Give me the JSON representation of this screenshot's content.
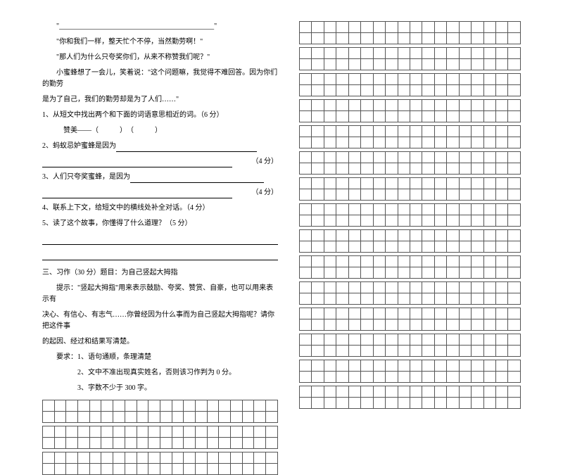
{
  "left": {
    "dialog1": "\"____________________________________________\"",
    "dialog2": "\"你和我们一样，整天忙个不停，当然勤劳啊！\"",
    "dialog3": "\"那人们为什么只夸奖你们，从来不称赞我们呢？\"",
    "dialog4_pre": "小蜜蜂想了一会儿，笑着说：\"这个问题嘛，我觉得不难回答。因为你们的勤劳",
    "dialog4_post": "是为了自己，我们的勤劳却是为了人们……\"",
    "q1": "1、从短文中找出两个和下面的词语意思相近的词。（6 分）",
    "q1_blank": "赞美——（　　　）　（　　　）",
    "q2": "2、蚂蚁忌妒蜜蜂是因为",
    "score4a": "（4 分）",
    "q3": "3、人们只夸奖蜜蜂，是因为",
    "score4b": "（4 分）",
    "q4": "4、联系上下文，给短文中的横线处补全对话。（4 分）",
    "q5": "5、读了这个故事，你懂得了什么道理？（5 分）",
    "essay_title": "三、习作（30 分）题目：为自己竖起大拇指",
    "essay_hint1": "提示：\"竖起大拇指\"用来表示鼓励、夸奖、赞赏、自豪，也可以用来表示有",
    "essay_hint2": "决心、有信心、有志气……你曾经因为什么事而为自己竖起大拇指呢？请你把这件事",
    "essay_hint3": "的起因、经过和结果写清楚。",
    "req_title": "要求：1、语句通顺，条理清楚",
    "req2": "2、文中不准出现真实姓名，否则该习作判为 0 分。",
    "req3": "3、字数不少于 300 字。"
  },
  "grid": {
    "left_cols": 20,
    "left_groups": 3,
    "right_cols": 18,
    "right_groups": 15
  },
  "colors": {
    "text": "#000000",
    "bg": "#ffffff",
    "grid_border": "#555555"
  }
}
